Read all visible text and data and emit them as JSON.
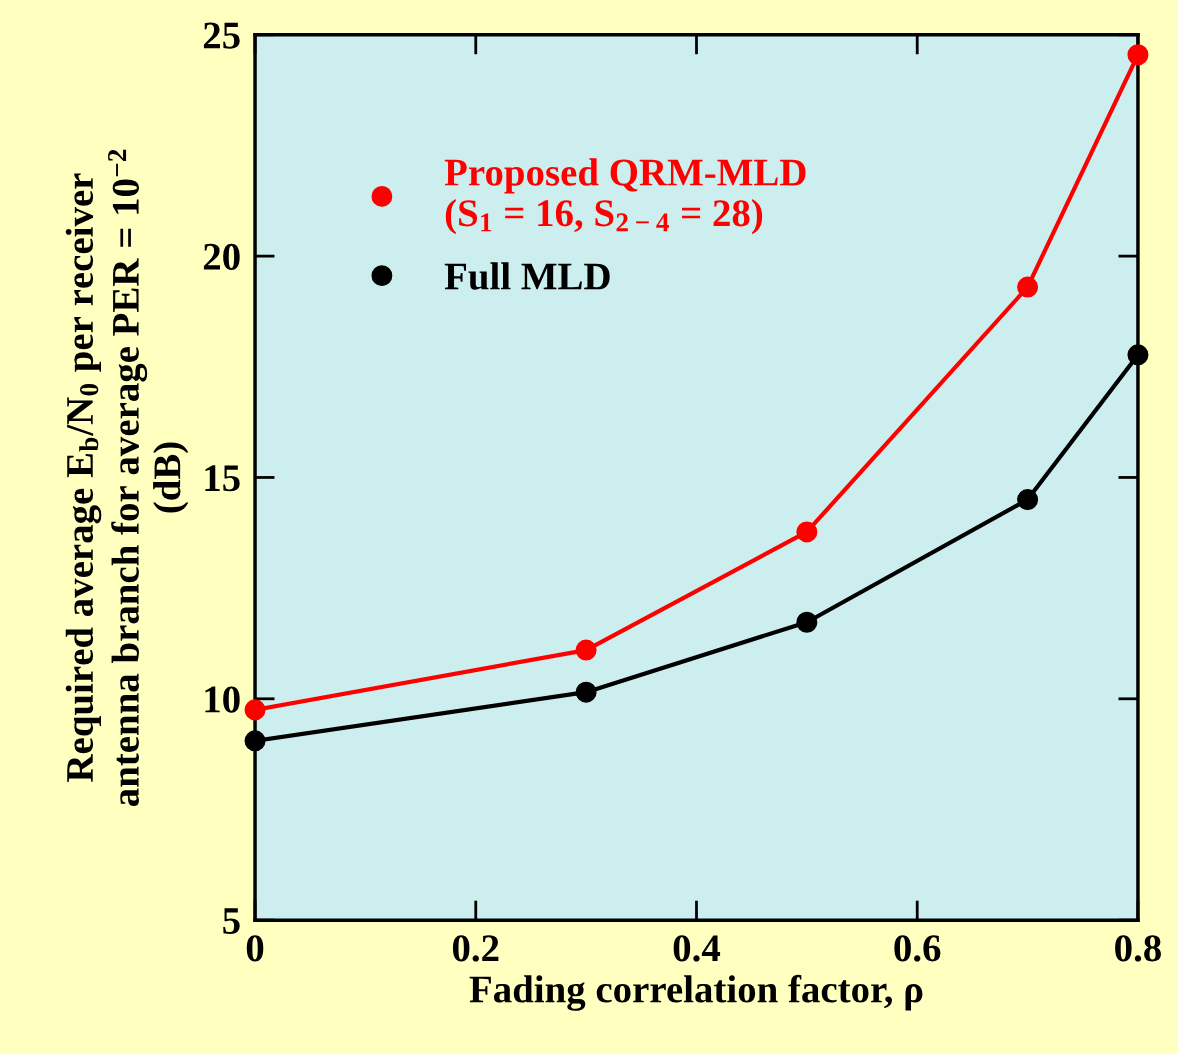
{
  "chart_data": {
    "type": "line",
    "xlabel": "Fading correlation factor, ρ",
    "ylabel": "Required average E$_{b}$/N$_{0}$ per receiver\nantenna branch for average PER = 10$^{−2}$\n(dB)",
    "x": [
      0,
      0.3,
      0.5,
      0.7,
      0.8
    ],
    "series": [
      {
        "name": "Proposed QRM-MLD\n(S$_{1}$ = 16, S$_{2−4}$ = 28)",
        "color": "#ff0000",
        "values": [
          9.75,
          11.1,
          13.77,
          19.3,
          24.55
        ]
      },
      {
        "name": "Full MLD",
        "color": "#000000",
        "values": [
          9.05,
          10.15,
          11.73,
          14.5,
          17.77
        ]
      }
    ],
    "xlim": [
      0,
      0.8
    ],
    "xticks": [
      0,
      0.2,
      0.4,
      0.6,
      0.8
    ],
    "ylim": [
      5,
      25
    ],
    "yticks": [
      5,
      10,
      15,
      20,
      25
    ],
    "marker": "circle",
    "line_style": "solid",
    "legend": "top left",
    "grid": false
  }
}
